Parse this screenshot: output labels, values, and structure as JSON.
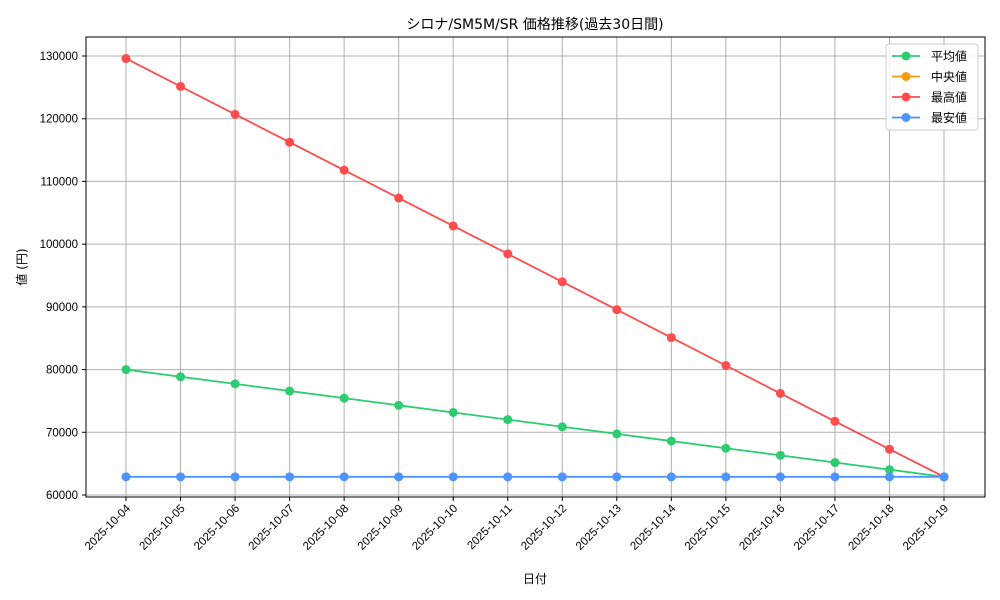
{
  "chart_data": {
    "type": "line",
    "title": "シロナ/SM5M/SR 価格推移(過去30日間)",
    "xlabel": "日付",
    "ylabel": "値 (円)",
    "x": [
      "2025-10-04",
      "2025-10-05",
      "2025-10-06",
      "2025-10-07",
      "2025-10-08",
      "2025-10-09",
      "2025-10-10",
      "2025-10-11",
      "2025-10-12",
      "2025-10-13",
      "2025-10-14",
      "2025-10-15",
      "2025-10-16",
      "2025-10-17",
      "2025-10-18",
      "2025-10-19"
    ],
    "ylim": [
      59500,
      133000
    ],
    "yticks": [
      60000,
      70000,
      80000,
      90000,
      100000,
      110000,
      120000,
      130000
    ],
    "grid": true,
    "legend_position": "upper right",
    "series": [
      {
        "name": "平均値",
        "color": "#2ecc71",
        "values": [
          80000,
          78860,
          77720,
          76580,
          75440,
          74300,
          73160,
          72020,
          70880,
          69740,
          68600,
          67460,
          66320,
          65180,
          64040,
          62900
        ]
      },
      {
        "name": "中央値",
        "color": "#f39c12",
        "values": []
      },
      {
        "name": "最高値",
        "color": "#ff4d4d",
        "values": [
          129600,
          125150,
          120700,
          116250,
          111800,
          107350,
          102900,
          98450,
          94000,
          89550,
          85100,
          80650,
          76200,
          71750,
          67300,
          62900
        ]
      },
      {
        "name": "最安値",
        "color": "#4d94ff",
        "values": [
          62900,
          62900,
          62900,
          62900,
          62900,
          62900,
          62900,
          62900,
          62900,
          62900,
          62900,
          62900,
          62900,
          62900,
          62900,
          62900
        ]
      }
    ]
  },
  "labels": {
    "title": "シロナ/SM5M/SR 価格推移(過去30日間)",
    "xlabel": "日付",
    "ylabel": "値 (円)"
  },
  "colors": {
    "grid": "#b0b0b0",
    "axis": "#000000",
    "legend_border": "#cccccc"
  }
}
